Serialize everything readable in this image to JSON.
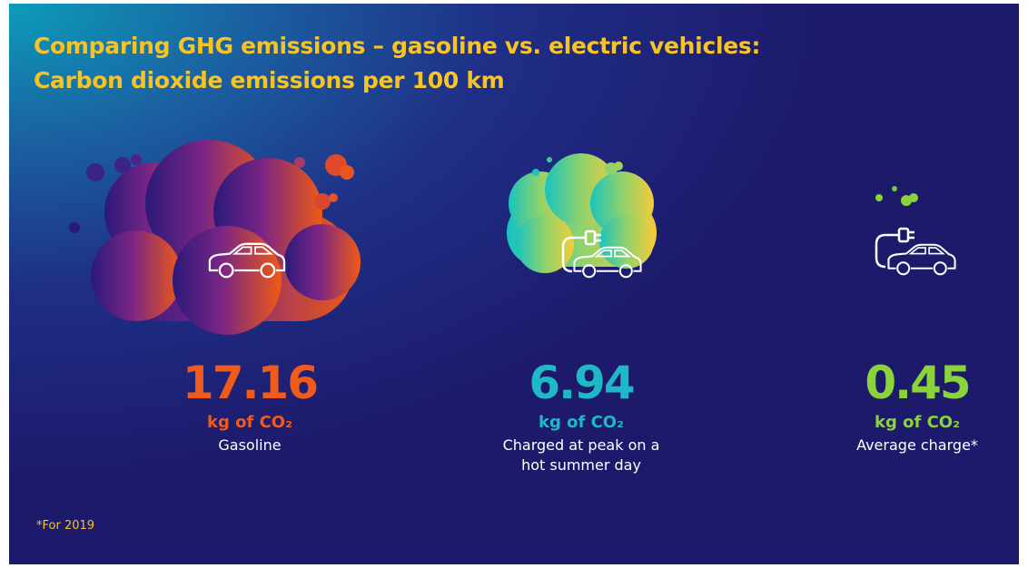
{
  "header": {
    "title": [
      "Comparing GHG emissions – gasoline vs. electric vehicles:",
      "Carbon dioxide emissions per 100 km"
    ]
  },
  "items": [
    {
      "value": "17.16",
      "unit": "kg of CO₂",
      "label": "Gasoline"
    },
    {
      "value": "6.94",
      "unit": "kg of CO₂",
      "label": "Charged at peak on a hot summer day"
    },
    {
      "value": "0.45",
      "unit": "kg of CO₂",
      "label": "Average charge*"
    }
  ],
  "footnote": "*For 2019"
}
